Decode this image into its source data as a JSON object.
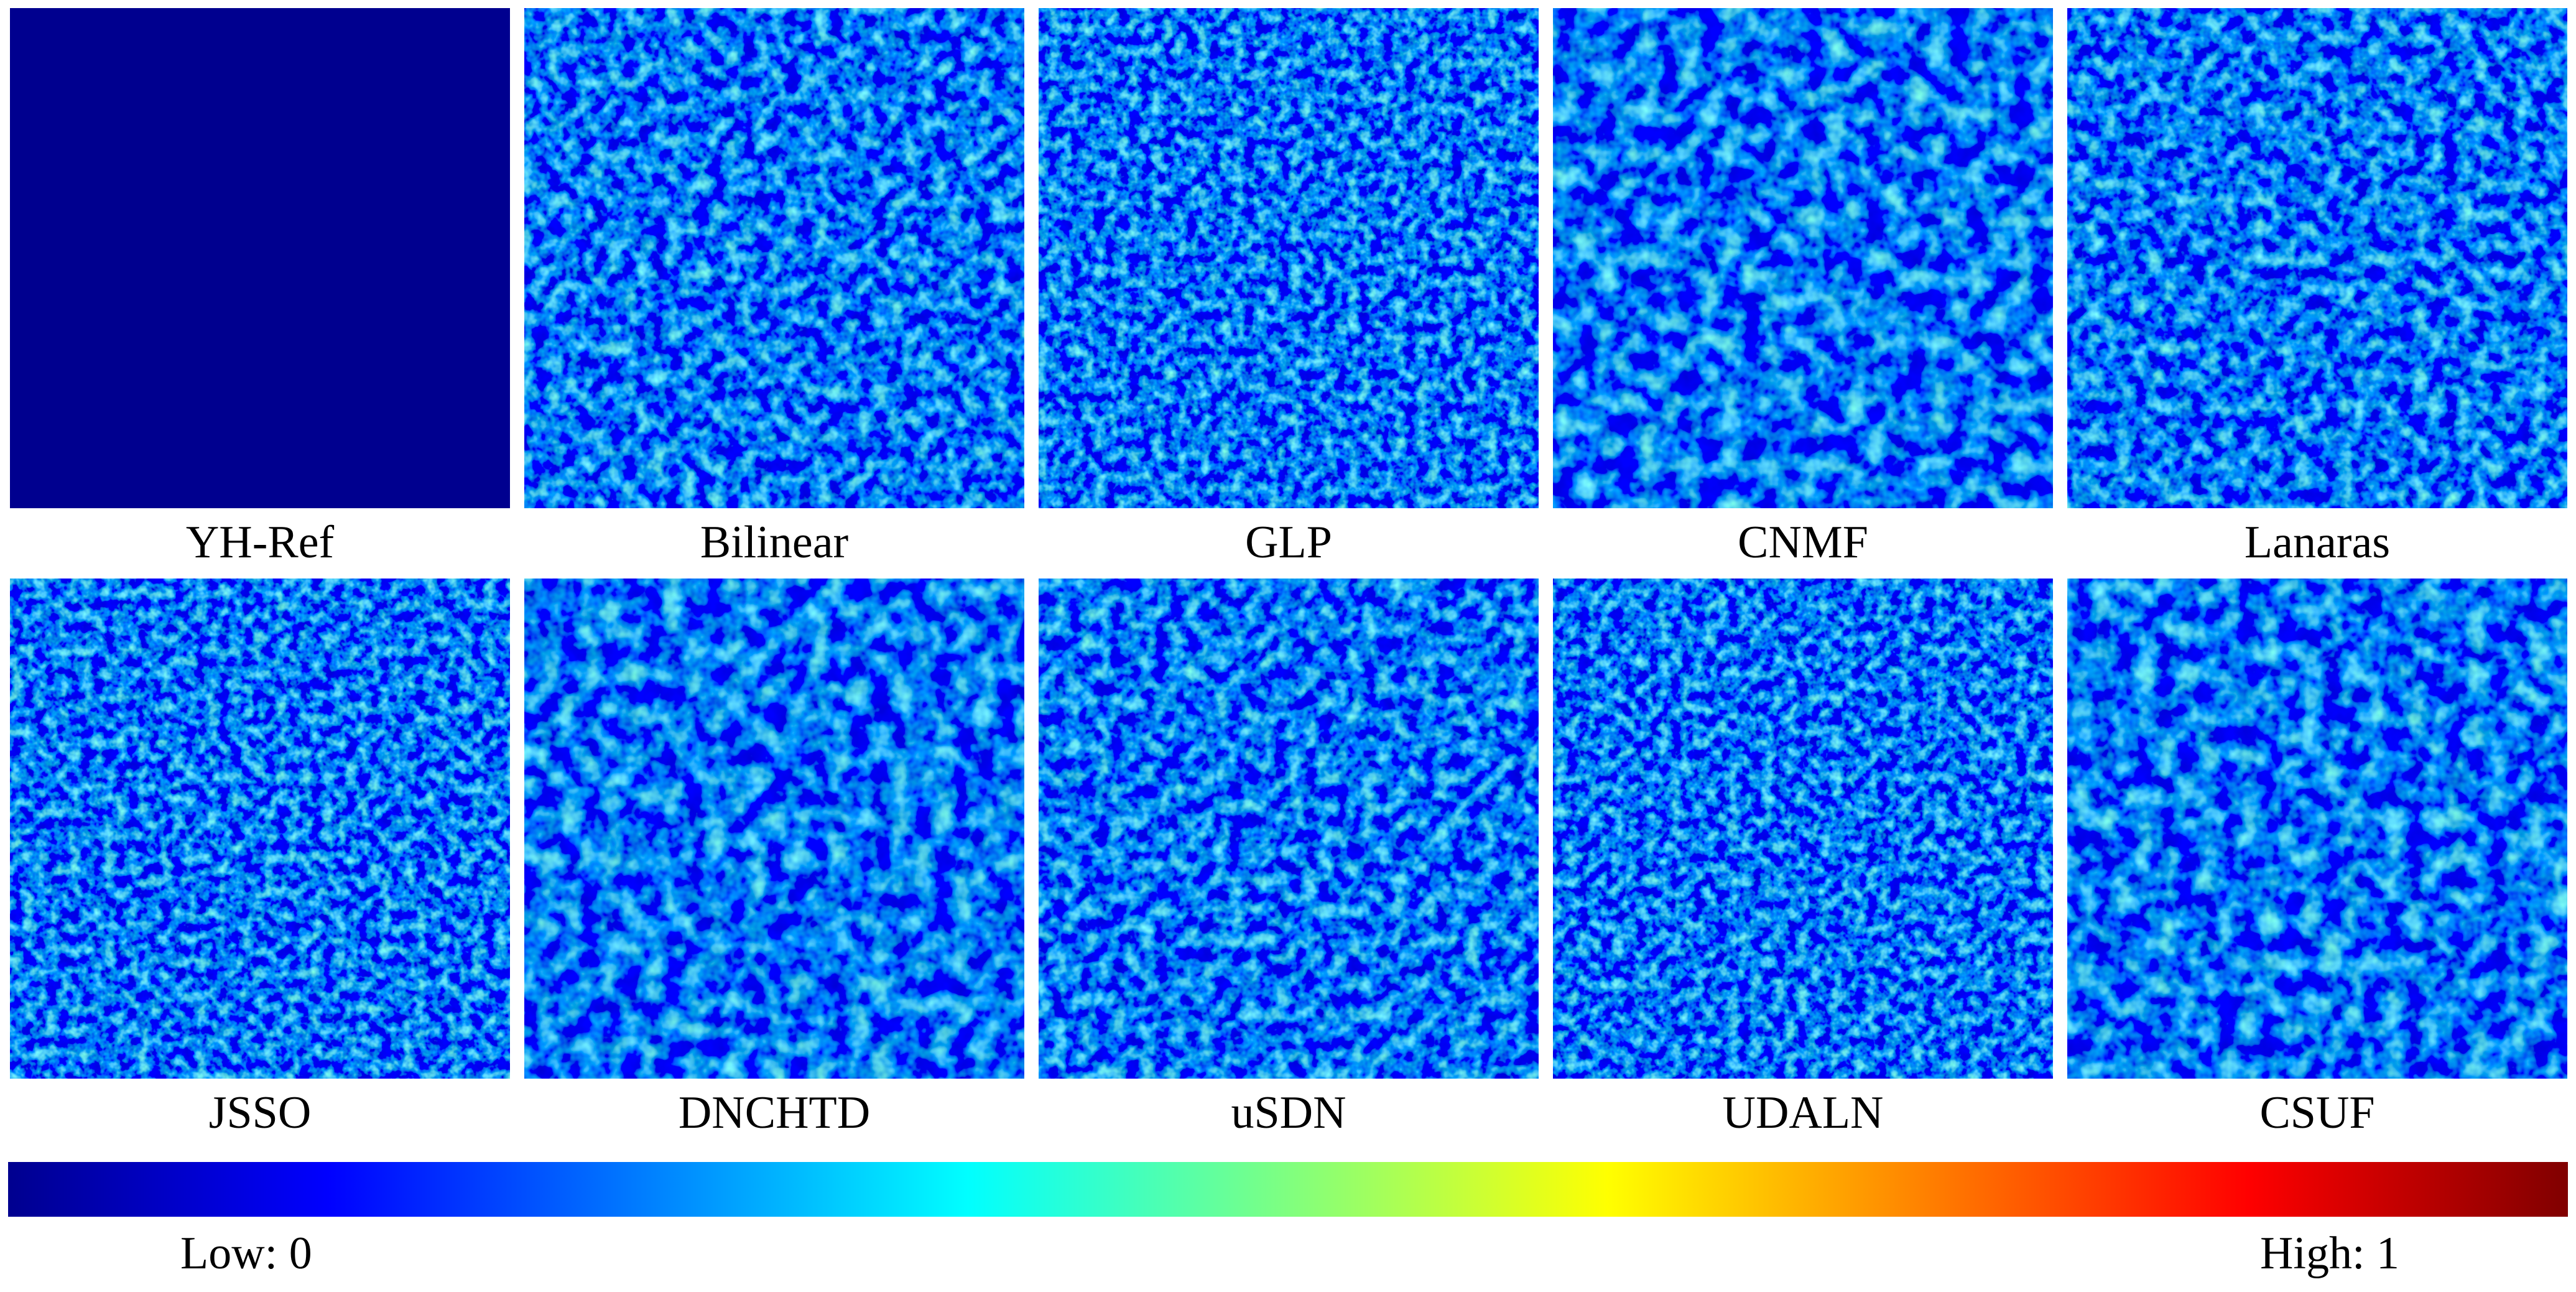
{
  "panels": [
    {
      "label": "YH-Ref"
    },
    {
      "label": "Bilinear"
    },
    {
      "label": "GLP"
    },
    {
      "label": "CNMF"
    },
    {
      "label": "Lanaras"
    },
    {
      "label": "JSSO"
    },
    {
      "label": "DNCHTD"
    },
    {
      "label": "uSDN"
    },
    {
      "label": "UDALN"
    },
    {
      "label": "CSUF"
    }
  ],
  "colorbar": {
    "low_label": "Low: 0",
    "high_label": "High: 1"
  }
}
